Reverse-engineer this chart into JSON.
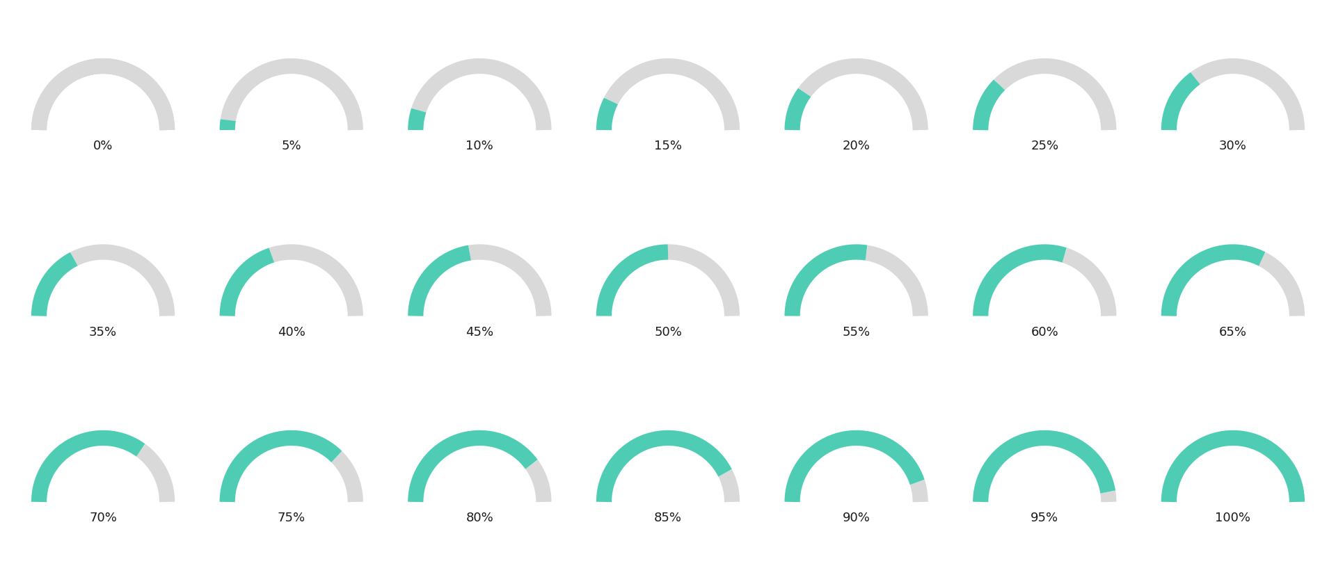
{
  "percentages": [
    0,
    5,
    10,
    15,
    20,
    25,
    30,
    35,
    40,
    45,
    50,
    55,
    60,
    65,
    70,
    75,
    80,
    85,
    90,
    95,
    100
  ],
  "rows": 3,
  "cols": 7,
  "teal_color": "#4ecdb4",
  "gray_color": "#d9d9d9",
  "bg_color": "#ffffff",
  "text_color": "#1a1a1a",
  "arc_linewidth": 16,
  "font_size": 13,
  "fig_width": 19.2,
  "fig_height": 8.4
}
